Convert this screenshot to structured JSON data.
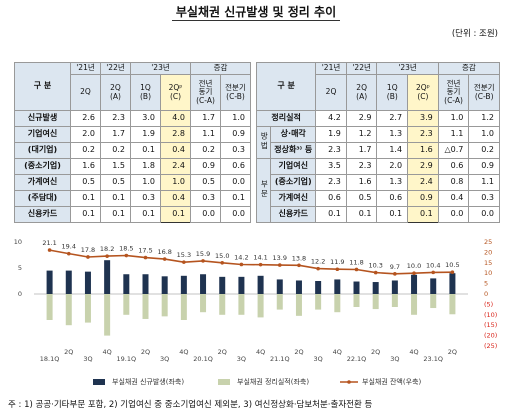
{
  "header": {
    "title": "부실채권 신규발생 및 정리 추이",
    "unit": "(단위 : 조원)"
  },
  "tables": [
    {
      "stub": "구 분",
      "header_top": [
        "'21년",
        "'22년",
        "'23년",
        "증감"
      ],
      "header_sub": [
        [
          "2Q"
        ],
        [
          "2Q",
          "(A)"
        ],
        [
          "1Q",
          "(B)"
        ],
        [
          "2Qᵖ",
          "(C)"
        ],
        [
          "전년",
          "동기",
          "(C-A)"
        ],
        [
          "전분기",
          "(C-B)"
        ]
      ],
      "rows": [
        {
          "label": "신규발생",
          "cells": [
            "2.6",
            "2.3",
            "3.0",
            "4.0",
            "1.7",
            "1.0"
          ]
        },
        {
          "label": "기업여신",
          "cells": [
            "2.0",
            "1.7",
            "1.9",
            "2.8",
            "1.1",
            "0.9"
          ]
        },
        {
          "label": "(대기업)",
          "cells": [
            "0.2",
            "0.2",
            "0.1",
            "0.4",
            "0.2",
            "0.3"
          ]
        },
        {
          "label": "(중소기업)",
          "cells": [
            "1.6",
            "1.5",
            "1.8",
            "2.4",
            "0.9",
            "0.6"
          ]
        },
        {
          "label": "가계여신",
          "cells": [
            "0.5",
            "0.5",
            "1.0",
            "1.0",
            "0.5",
            "0.0"
          ]
        },
        {
          "label": "(주담대)",
          "cells": [
            "0.1",
            "0.1",
            "0.3",
            "0.4",
            "0.3",
            "0.1"
          ]
        },
        {
          "label": "신용카드",
          "cells": [
            "0.1",
            "0.1",
            "0.1",
            "0.1",
            "0.0",
            "0.0"
          ]
        }
      ]
    },
    {
      "stub": "구 분",
      "header_top": [
        "'21년",
        "'22년",
        "'23년",
        "증감"
      ],
      "header_sub": [
        [
          "2Q"
        ],
        [
          "2Q",
          "(A)"
        ],
        [
          "1Q",
          "(B)"
        ],
        [
          "2Qᵖ",
          "(C)"
        ],
        [
          "전년",
          "동기",
          "(C-A)"
        ],
        [
          "전분기",
          "(C-B)"
        ]
      ],
      "rows": [
        {
          "label": "정리실적",
          "cells": [
            "4.2",
            "2.9",
            "2.7",
            "3.9",
            "1.0",
            "1.2"
          ]
        },
        {
          "group": "방법",
          "rows": [
            {
              "label": "상·매각",
              "cells": [
                "1.9",
                "1.2",
                "1.3",
                "2.3",
                "1.1",
                "1.0"
              ]
            },
            {
              "label": "정상화³⁾ 등",
              "cells": [
                "2.3",
                "1.7",
                "1.4",
                "1.6",
                "△0.7",
                "0.2"
              ]
            }
          ]
        },
        {
          "group": "부문",
          "rows": [
            {
              "label": "기업여신",
              "cells": [
                "3.5",
                "2.3",
                "2.0",
                "2.9",
                "0.6",
                "0.9"
              ]
            },
            {
              "label": "(중소기업)",
              "cells": [
                "2.3",
                "1.6",
                "1.3",
                "2.4",
                "0.8",
                "1.1"
              ]
            },
            {
              "label": "가계여신",
              "cells": [
                "0.6",
                "0.5",
                "0.6",
                "0.9",
                "0.4",
                "0.3"
              ]
            },
            {
              "label": "신용카드",
              "cells": [
                "0.1",
                "0.1",
                "0.1",
                "0.1",
                "0.0",
                "0.0"
              ]
            }
          ]
        }
      ]
    }
  ],
  "chart_data": {
    "type": "bar-line",
    "categories": [
      "18.1Q",
      "2Q",
      "3Q",
      "4Q",
      "19.1Q",
      "2Q",
      "3Q",
      "4Q",
      "20.1Q",
      "2Q",
      "3Q",
      "4Q",
      "21.1Q",
      "2Q",
      "3Q",
      "4Q",
      "22.1Q",
      "2Q",
      "3Q",
      "4Q",
      "23.1Q",
      "2Q"
    ],
    "ylim": [
      -10,
      10
    ],
    "yticks": [
      10,
      5,
      0
    ],
    "y2lim": [
      -25,
      25
    ],
    "y2ticks": [
      25,
      20,
      15,
      10,
      5,
      0,
      {
        "value": -5,
        "label": "(5)"
      },
      {
        "value": -10,
        "label": "(10)"
      },
      {
        "value": -15,
        "label": "(15)"
      },
      {
        "value": -20,
        "label": "(20)"
      },
      {
        "value": -25,
        "label": "(25)"
      }
    ],
    "series": [
      {
        "name": "부실채권 신규발생(좌축)",
        "type": "bar",
        "color": "#1f3350",
        "values": [
          4.5,
          4.5,
          4.3,
          6.5,
          3.8,
          3.8,
          3.4,
          3.5,
          3.8,
          3.3,
          3.3,
          3.5,
          2.8,
          2.6,
          2.5,
          2.8,
          2.4,
          2.3,
          2.6,
          3.7,
          3.0,
          4.0
        ]
      },
      {
        "name": "부실채권 정리실적(좌축)",
        "type": "bar",
        "color": "#c8d2ad",
        "values": [
          -5.0,
          -6.0,
          -5.5,
          -8.0,
          -4.0,
          -4.8,
          -4.3,
          -5.0,
          -3.5,
          -4.0,
          -4.0,
          -4.5,
          -3.0,
          -4.2,
          -3.0,
          -3.5,
          -2.5,
          -2.9,
          -2.5,
          -4.0,
          -2.7,
          -3.9
        ]
      },
      {
        "name": "부실채권 잔액(우축)",
        "type": "line",
        "axis": "y2",
        "color": "#b5541f",
        "values": [
          21.1,
          19.4,
          17.8,
          18.2,
          18.5,
          17.5,
          16.8,
          15.3,
          15.9,
          15.0,
          14.2,
          14.1,
          13.9,
          13.8,
          12.2,
          11.9,
          11.8,
          10.3,
          9.7,
          10.0,
          10.4,
          10.5
        ],
        "value_labels": [
          "21.1",
          "19.4",
          "17.8",
          "18.2",
          "18.5",
          "17.5",
          "16.8",
          "15.3",
          "15.9",
          "15.0",
          "14.2",
          "14.1",
          "13.9",
          "13.8",
          "12.2",
          "11.9",
          "11.8",
          "10.3",
          "9.7",
          "10.0",
          "10.4",
          "10.5"
        ]
      }
    ]
  },
  "footnote": "주 : 1) 공공·기타부문 포함, 2) 기업여신 중 중소기업여신 제외분, 3) 여신정상화·담보처분·출자전환 등"
}
